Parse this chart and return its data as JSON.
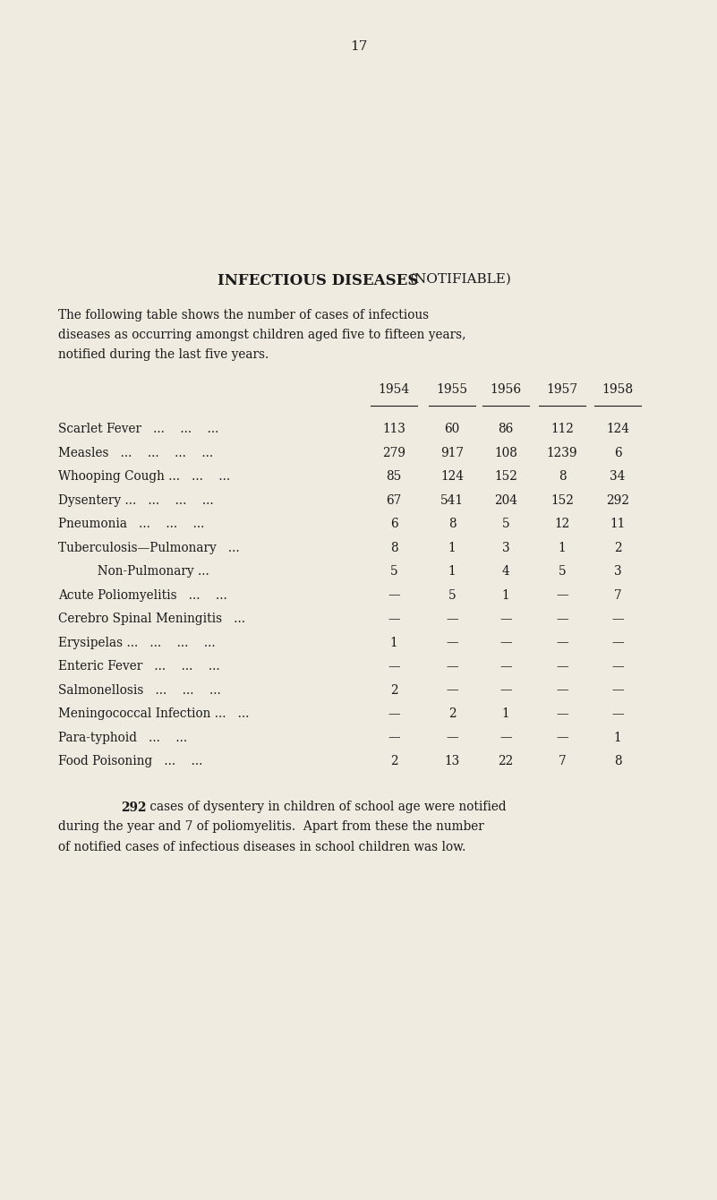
{
  "page_number": "17",
  "bg_color": "#f0ebe0",
  "text_color": "#1a1a1a",
  "title_main": "INFECTIOUS DISEASES",
  "title_sub": "(NOTIFIABLE)",
  "intro_line1": "The following table shows the number of cases of infectious",
  "intro_line2": "diseases as occurring amongst children aged five to fifteen years,",
  "intro_line3": "notified during the last five years.",
  "years": [
    "1954",
    "1955",
    "1956",
    "1957",
    "1958"
  ],
  "rows": [
    {
      "label": "Scarlet Fever",
      "label_dots": "   ...    ...    ...",
      "indent": false,
      "values": [
        "113",
        "60",
        "86",
        "112",
        "124"
      ]
    },
    {
      "label": "Measles",
      "label_dots": "   ...    ...    ...    ...",
      "indent": false,
      "values": [
        "279",
        "917",
        "108",
        "1239",
        "6"
      ]
    },
    {
      "label": "Whooping Cough ...",
      "label_dots": "   ...    ...",
      "indent": false,
      "values": [
        "85",
        "124",
        "152",
        "8",
        "34"
      ]
    },
    {
      "label": "Dysentery ...",
      "label_dots": "   ...    ...    ...",
      "indent": false,
      "values": [
        "67",
        "541",
        "204",
        "152",
        "292"
      ]
    },
    {
      "label": "Pneumonia",
      "label_dots": "   ...    ...    ...",
      "indent": false,
      "values": [
        "6",
        "8",
        "5",
        "12",
        "11"
      ]
    },
    {
      "label": "Tuberculosis—Pulmonary",
      "label_dots": "   ...",
      "indent": false,
      "values": [
        "8",
        "1",
        "3",
        "1",
        "2"
      ]
    },
    {
      "label": "          Non-Pulmonary ...",
      "label_dots": "",
      "indent": false,
      "values": [
        "5",
        "1",
        "4",
        "5",
        "3"
      ]
    },
    {
      "label": "Acute Poliomyelitis",
      "label_dots": "   ...    ...",
      "indent": false,
      "values": [
        "—",
        "5",
        "1",
        "—",
        "7"
      ]
    },
    {
      "label": "Cerebro Spinal Meningitis",
      "label_dots": "   ...",
      "indent": false,
      "values": [
        "—",
        "—",
        "—",
        "—",
        "—"
      ]
    },
    {
      "label": "Erysipelas ...",
      "label_dots": "   ...    ...    ...",
      "indent": false,
      "values": [
        "1",
        "—",
        "—",
        "—",
        "—"
      ]
    },
    {
      "label": "Enteric Fever",
      "label_dots": "   ...    ...    ...",
      "indent": false,
      "values": [
        "—",
        "—",
        "—",
        "—",
        "—"
      ]
    },
    {
      "label": "Salmonellosis",
      "label_dots": "   ...    ...    ...",
      "indent": false,
      "values": [
        "2",
        "—",
        "—",
        "—",
        "—"
      ]
    },
    {
      "label": "Meningococcal Infection ...",
      "label_dots": "   ...",
      "indent": false,
      "values": [
        "—",
        "2",
        "1",
        "—",
        "—"
      ]
    },
    {
      "label": "Para-typhoid",
      "label_dots": "   ...    ...",
      "indent": false,
      "values": [
        "—",
        "—",
        "—",
        "—",
        "1"
      ]
    },
    {
      "label": "Food Poisoning",
      "label_dots": "   ...    ...",
      "indent": false,
      "values": [
        "2",
        "13",
        "22",
        "7",
        "8"
      ]
    }
  ],
  "footer_bold": "292",
  "footer_line1": " cases of dysentery in children of school age were notified",
  "footer_line2": "during the year and 7 of poliomyelitis.  Apart from these the number",
  "footer_line3": "of notified cases of infectious diseases in school children was low."
}
